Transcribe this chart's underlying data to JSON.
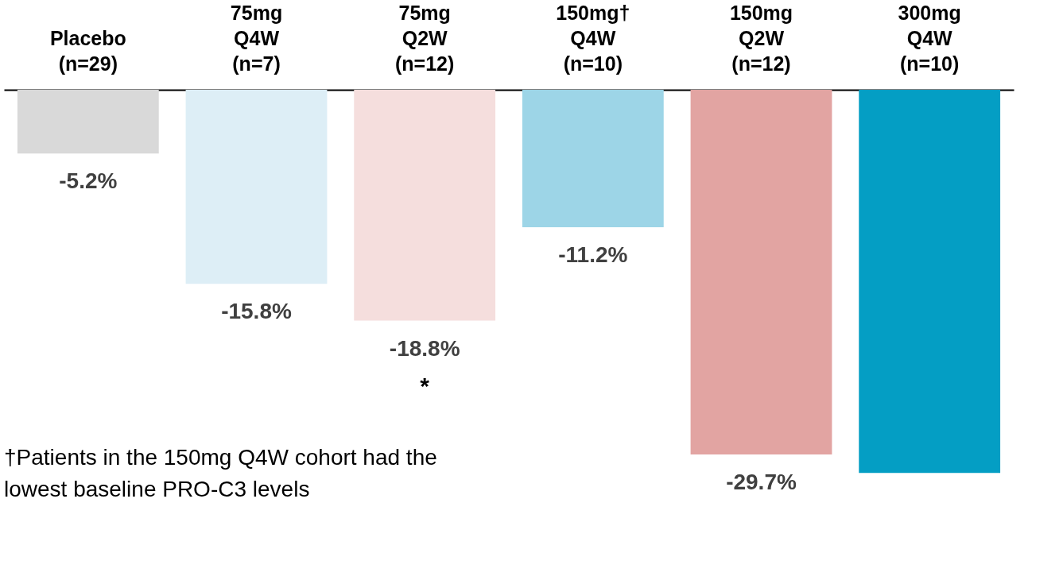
{
  "chart_data": {
    "type": "bar",
    "categories": [
      "Placebo\n(n=29)",
      "75mg\nQ4W\n(n=7)",
      "75mg\nQ2W\n(n=12)",
      "150mg†\nQ4W\n(n=10)",
      "150mg\nQ2W\n(n=12)",
      "300mg\nQ4W\n(n=10)"
    ],
    "values": [
      -5.2,
      -15.8,
      -18.8,
      -11.2,
      -29.7,
      -31.2
    ],
    "value_labels": [
      "-5.2%",
      "-15.8%",
      "-18.8%",
      "-11.2%",
      "-29.7%",
      null
    ],
    "colors": [
      "#d9d9d9",
      "#ddeef6",
      "#f5dedd",
      "#9dd5e7",
      "#e2a4a2",
      "#049ec4"
    ],
    "annotations": [
      {
        "text": "*",
        "x": "75mg\nQ2W\n(n=12)",
        "y": -18.8
      },
      "†Patients in the 150mg Q4W cohort had the\n lowest baseline PRO-C3 levels"
    ],
    "grid": false
  }
}
